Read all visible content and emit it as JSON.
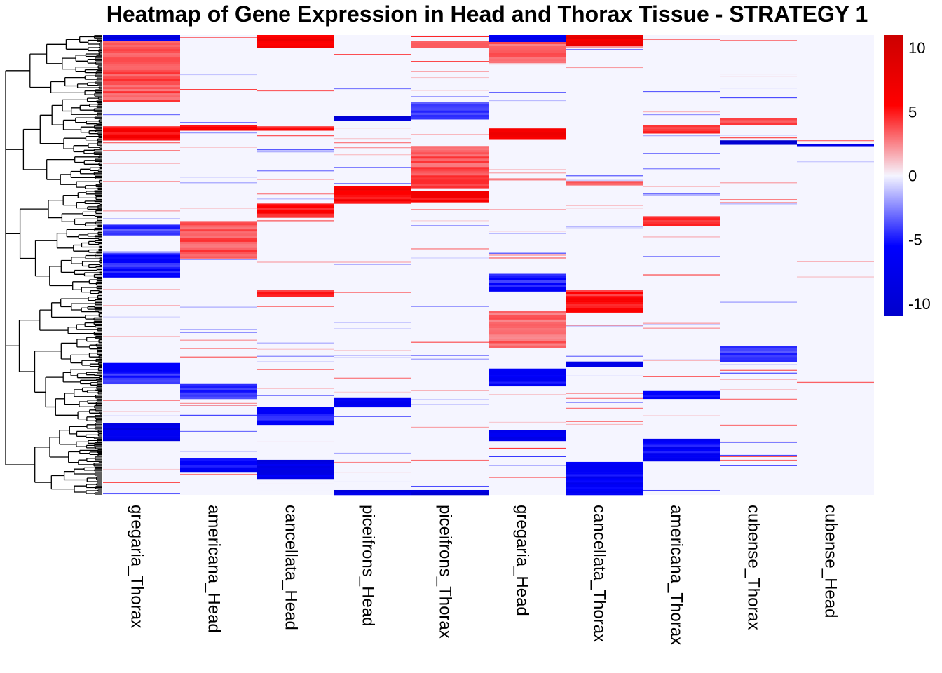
{
  "chart_data": {
    "type": "heatmap",
    "title": "Heatmap of Gene Expression in Head and Thorax Tissue - STRATEGY 1",
    "columns": [
      "gregaria_Thorax",
      "americana_Head",
      "cancellata_Head",
      "piceifrons_Head",
      "piceifrons_Thorax",
      "gregaria_Head",
      "cancellata_Thorax",
      "americana_Thorax",
      "cubense_Thorax",
      "cubense_Head"
    ],
    "colorbar": {
      "ticks": [
        "10",
        "5",
        "0",
        "-5",
        "-10"
      ],
      "tick_values": [
        10,
        5,
        0,
        -5,
        -10
      ],
      "range": [
        -11,
        11
      ],
      "colors": {
        "high": "#CC0000",
        "mid_high": "#FF0000",
        "zero": "#F5F5FF",
        "mid_low": "#0000FF",
        "low": "#0000CC"
      }
    },
    "row_dendrogram": true,
    "n_rows": 655,
    "blocks": [
      {
        "col": 0,
        "rows": [
          0,
          8
        ],
        "value": -9
      },
      {
        "col": 0,
        "rows": [
          8,
          95
        ],
        "value": 3.5
      },
      {
        "col": 0,
        "rows": [
          130,
          150
        ],
        "value": 6
      },
      {
        "col": 0,
        "rows": [
          270,
          285
        ],
        "value": -4
      },
      {
        "col": 0,
        "rows": [
          310,
          345
        ],
        "value": -5
      },
      {
        "col": 0,
        "rows": [
          467,
          497
        ],
        "value": -5
      },
      {
        "col": 0,
        "rows": [
          553,
          578
        ],
        "value": -9
      },
      {
        "col": 1,
        "rows": [
          128,
          136
        ],
        "value": 5
      },
      {
        "col": 1,
        "rows": [
          265,
          318
        ],
        "value": 3.5
      },
      {
        "col": 1,
        "rows": [
          497,
          518
        ],
        "value": -4
      },
      {
        "col": 1,
        "rows": [
          603,
          622
        ],
        "value": -6
      },
      {
        "col": 2,
        "rows": [
          0,
          18
        ],
        "value": 6
      },
      {
        "col": 2,
        "rows": [
          130,
          136
        ],
        "value": 5
      },
      {
        "col": 2,
        "rows": [
          240,
          260
        ],
        "value": 5
      },
      {
        "col": 2,
        "rows": [
          363,
          373
        ],
        "value": 5
      },
      {
        "col": 2,
        "rows": [
          530,
          555
        ],
        "value": -5
      },
      {
        "col": 2,
        "rows": [
          605,
          632
        ],
        "value": -8
      },
      {
        "col": 3,
        "rows": [
          115,
          122
        ],
        "value": -9
      },
      {
        "col": 3,
        "rows": [
          215,
          240
        ],
        "value": 6
      },
      {
        "col": 3,
        "rows": [
          517,
          530
        ],
        "value": -6
      },
      {
        "col": 3,
        "rows": [
          648,
          655
        ],
        "value": -10
      },
      {
        "col": 4,
        "rows": [
          8,
          18
        ],
        "value": 4
      },
      {
        "col": 4,
        "rows": [
          95,
          120
        ],
        "value": -4
      },
      {
        "col": 4,
        "rows": [
          158,
          218
        ],
        "value": 3.5
      },
      {
        "col": 4,
        "rows": [
          222,
          238
        ],
        "value": 6
      },
      {
        "col": 4,
        "rows": [
          648,
          655
        ],
        "value": -10
      },
      {
        "col": 5,
        "rows": [
          0,
          10
        ],
        "value": -8
      },
      {
        "col": 5,
        "rows": [
          10,
          40
        ],
        "value": 3
      },
      {
        "col": 5,
        "rows": [
          133,
          148
        ],
        "value": 6
      },
      {
        "col": 5,
        "rows": [
          340,
          365
        ],
        "value": -5
      },
      {
        "col": 5,
        "rows": [
          393,
          445
        ],
        "value": 3
      },
      {
        "col": 5,
        "rows": [
          475,
          500
        ],
        "value": -6
      },
      {
        "col": 5,
        "rows": [
          563,
          578
        ],
        "value": -7
      },
      {
        "col": 6,
        "rows": [
          0,
          15
        ],
        "value": 8
      },
      {
        "col": 6,
        "rows": [
          208,
          214
        ],
        "value": 3
      },
      {
        "col": 6,
        "rows": [
          363,
          395
        ],
        "value": 5
      },
      {
        "col": 6,
        "rows": [
          465,
          472
        ],
        "value": -8
      },
      {
        "col": 6,
        "rows": [
          608,
          655
        ],
        "value": -6
      },
      {
        "col": 7,
        "rows": [
          128,
          140
        ],
        "value": 4
      },
      {
        "col": 7,
        "rows": [
          258,
          272
        ],
        "value": 4
      },
      {
        "col": 7,
        "rows": [
          507,
          518
        ],
        "value": -6
      },
      {
        "col": 7,
        "rows": [
          575,
          607
        ],
        "value": -6
      },
      {
        "col": 8,
        "rows": [
          118,
          128
        ],
        "value": 4
      },
      {
        "col": 8,
        "rows": [
          150,
          156
        ],
        "value": -10
      },
      {
        "col": 8,
        "rows": [
          443,
          465
        ],
        "value": -4
      },
      {
        "col": 9,
        "rows": [
          155,
          158
        ],
        "value": -9
      },
      {
        "col": 9,
        "rows": [
          494,
          496
        ],
        "value": 4
      }
    ]
  }
}
